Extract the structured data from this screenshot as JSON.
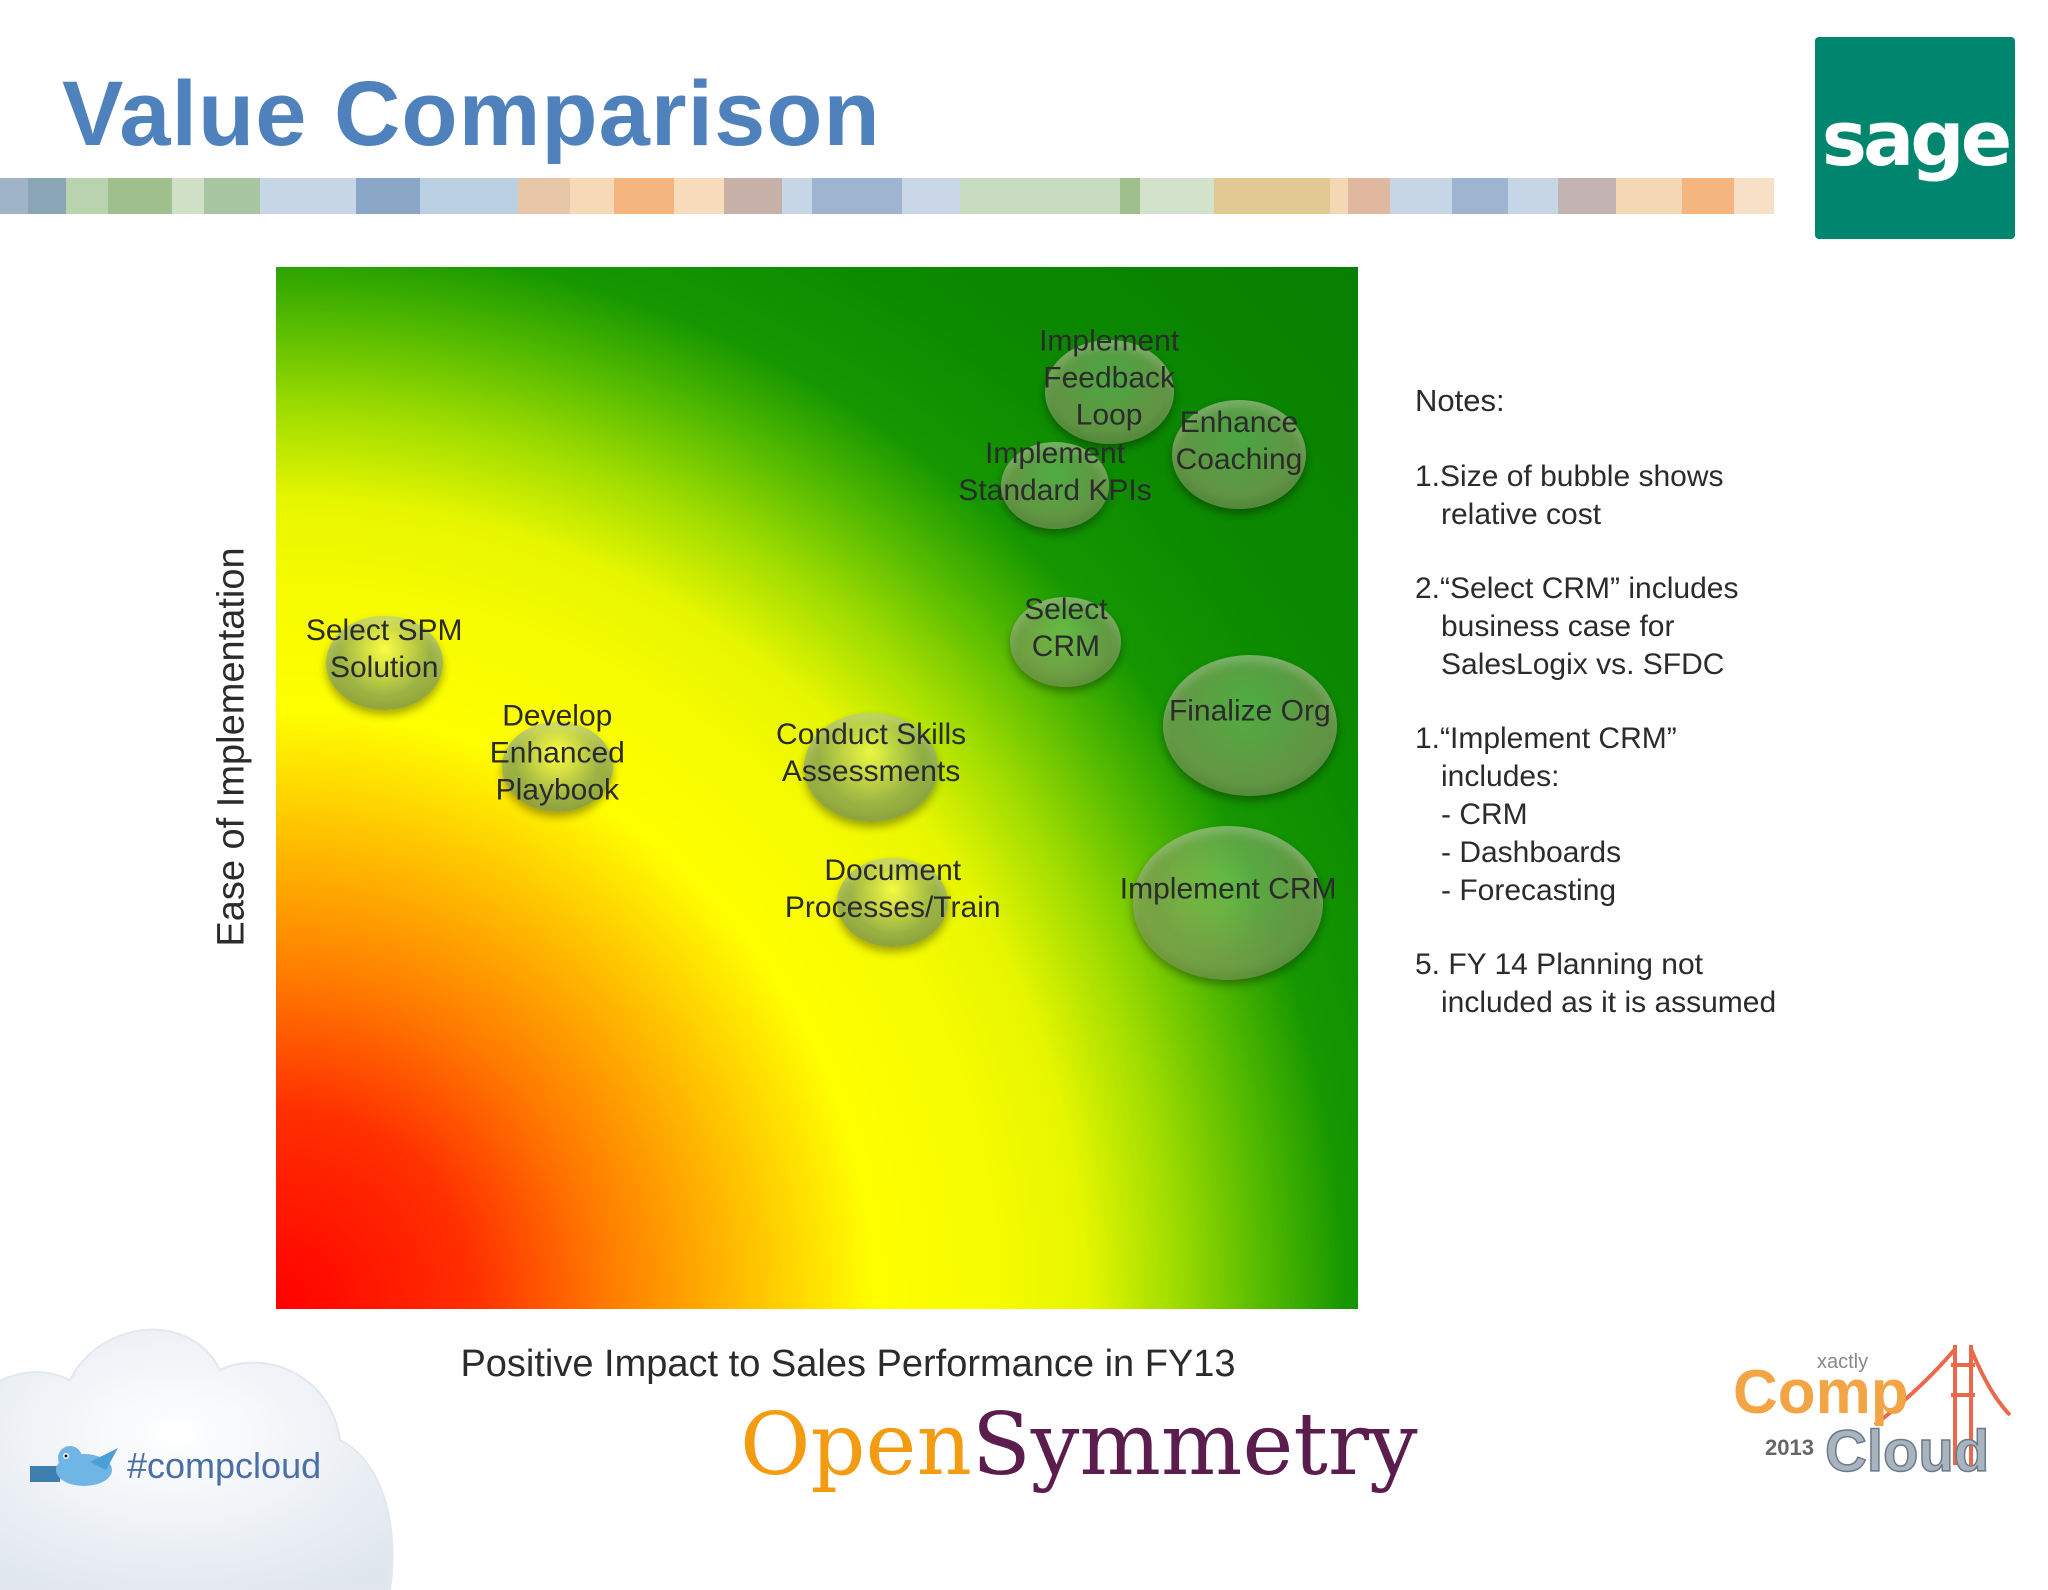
{
  "slide": {
    "title": "Value Comparison"
  },
  "brand": {
    "logo_text": "sage",
    "logo_bg": "#00856f",
    "title_color": "#4f81bd"
  },
  "chart_data": {
    "type": "bubble",
    "xlabel": "Positive Impact to Sales Performance in FY13",
    "ylabel": "Ease of Implementation",
    "axis_ticks": "none",
    "background": "radial gradient from red (bottom-left) through orange and yellow to green (top-right)",
    "bubble_color": "#7c9a5a",
    "points": [
      {
        "label": "Implement Feedback Loop",
        "lines": [
          "Implement",
          "Feedback",
          "Loop"
        ],
        "x": 0.77,
        "y": 0.88,
        "size": 0.23
      },
      {
        "label": "Enhance Coaching",
        "lines": [
          "Enhance",
          "Coaching"
        ],
        "x": 0.89,
        "y": 0.82,
        "size": 0.25
      },
      {
        "label": "Implement Standard KPIs",
        "lines": [
          "Implement",
          "Standard KPIs"
        ],
        "x": 0.72,
        "y": 0.79,
        "size": 0.16
      },
      {
        "label": "Select SPM Solution",
        "lines": [
          "Select SPM",
          "Solution"
        ],
        "x": 0.1,
        "y": 0.62,
        "size": 0.19
      },
      {
        "label": "Develop Enhanced Playbook",
        "lines": [
          "Develop",
          "Enhanced",
          "Playbook"
        ],
        "x": 0.26,
        "y": 0.52,
        "size": 0.17
      },
      {
        "label": "Select CRM",
        "lines": [
          "Select",
          "CRM"
        ],
        "x": 0.73,
        "y": 0.64,
        "size": 0.17
      },
      {
        "label": "Conduct Skills Assessments",
        "lines": [
          "Conduct Skills",
          "Assessments"
        ],
        "x": 0.55,
        "y": 0.52,
        "size": 0.25
      },
      {
        "label": "Finalize Org",
        "lines": [
          "Finalize Org"
        ],
        "x": 0.9,
        "y": 0.56,
        "size": 0.42
      },
      {
        "label": "Document Processes/Train",
        "lines": [
          "Document",
          "Processes/Train"
        ],
        "x": 0.57,
        "y": 0.39,
        "size": 0.17
      },
      {
        "label": "Implement CRM",
        "lines": [
          "Implement CRM"
        ],
        "x": 0.88,
        "y": 0.39,
        "size": 0.5
      }
    ]
  },
  "notes": {
    "heading": "Notes:",
    "items": [
      {
        "lines": [
          "1.Size of bubble shows",
          "relative cost"
        ]
      },
      {
        "lines": [
          "2.“Select CRM” includes",
          "business case for",
          "SalesLogix vs. SFDC"
        ]
      },
      {
        "lines": [
          "1.“Implement CRM”",
          "includes:"
        ],
        "sub": [
          "-  CRM",
          "-  Dashboards",
          "-  Forecasting"
        ]
      },
      {
        "lines": [
          "5. FY 14 Planning  not",
          "included as it is assumed"
        ]
      }
    ]
  },
  "footer": {
    "hashtag": "#compcloud",
    "opensymmetry_part1": "Open",
    "opensymmetry_part2": "Symmetry",
    "compcloud_small": "xactly",
    "compcloud_comp": "Comp",
    "compcloud_year": "2013",
    "compcloud_cloud": "Cloud"
  }
}
